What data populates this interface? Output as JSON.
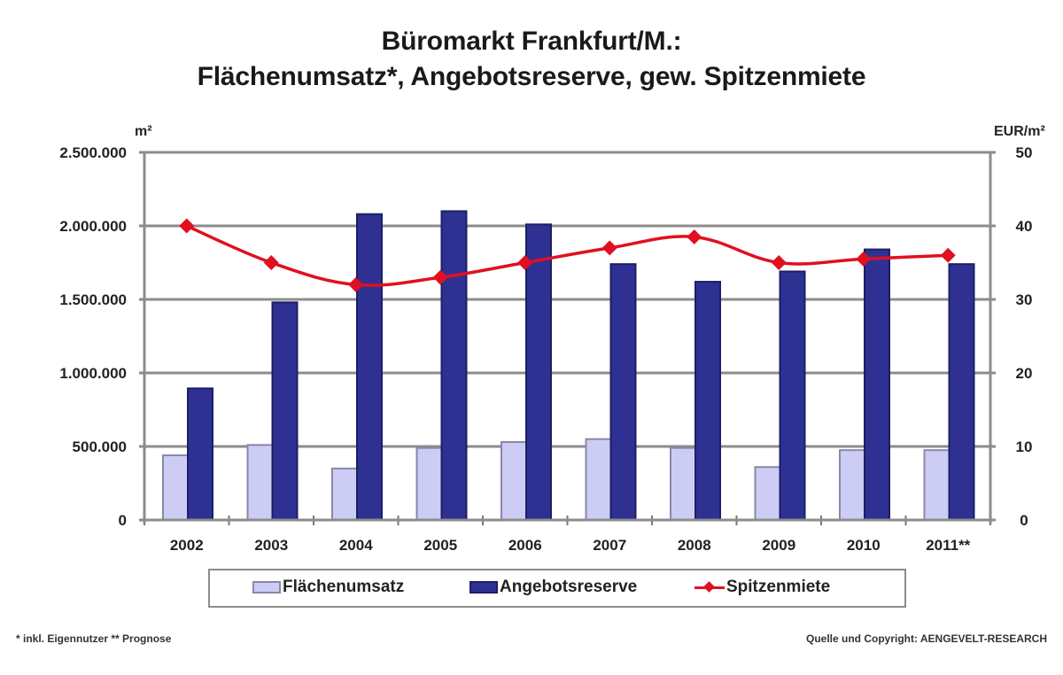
{
  "title": {
    "line1": "Büromarkt Frankfurt/M.:",
    "line2": "Flächenumsatz*, Angebotsreserve,  gew. Spitzenmiete"
  },
  "axes": {
    "left_unit": "m²",
    "right_unit": "EUR/m²",
    "left_ticks": [
      "0",
      "500.000",
      "1.000.000",
      "1.500.000",
      "2.000.000",
      "2.500.000"
    ],
    "right_ticks": [
      "0",
      "10",
      "20",
      "30",
      "40",
      "50"
    ]
  },
  "legend": {
    "items": [
      {
        "label": "Flächenumsatz",
        "type": "bar-light"
      },
      {
        "label": "Angebotsreserve",
        "type": "bar-dark"
      },
      {
        "label": "Spitzenmiete",
        "type": "line"
      }
    ]
  },
  "footnotes": {
    "left": "* inkl. Eigennutzer   ** Prognose",
    "right": "Quelle und Copyright: AENGEVELT-RESEARCH"
  },
  "colors": {
    "flaechenumsatz": "#ccccf5",
    "flaechenumsatz_border": "#8888a8",
    "angebotsreserve": "#2e3192",
    "angebotsreserve_border": "#1c1f66",
    "spitzenmiete": "#e01020",
    "grid": "#8c8c8c"
  },
  "chart_data": {
    "type": "bar",
    "title": "Büromarkt Frankfurt/M.: Flächenumsatz*, Angebotsreserve, gew. Spitzenmiete",
    "categories": [
      "2002",
      "2003",
      "2004",
      "2005",
      "2006",
      "2007",
      "2008",
      "2009",
      "2010",
      "2011**"
    ],
    "series": [
      {
        "name": "Flächenumsatz",
        "type": "bar",
        "axis": "left",
        "values": [
          440000,
          510000,
          350000,
          490000,
          530000,
          550000,
          490000,
          360000,
          475000,
          475000
        ]
      },
      {
        "name": "Angebotsreserve",
        "type": "bar",
        "axis": "left",
        "values": [
          895000,
          1480000,
          2080000,
          2100000,
          2010000,
          1740000,
          1620000,
          1690000,
          1840000,
          1740000
        ]
      },
      {
        "name": "Spitzenmiete",
        "type": "line",
        "axis": "right",
        "values": [
          40,
          35,
          32,
          33,
          35,
          37,
          38.5,
          35,
          35.5,
          36
        ]
      }
    ],
    "xlabel": "",
    "ylabel": "m²",
    "ylabel_right": "EUR/m²",
    "ylim": [
      0,
      2500000
    ],
    "ylim_right": [
      0,
      50
    ],
    "grid": true,
    "legend_position": "bottom"
  }
}
